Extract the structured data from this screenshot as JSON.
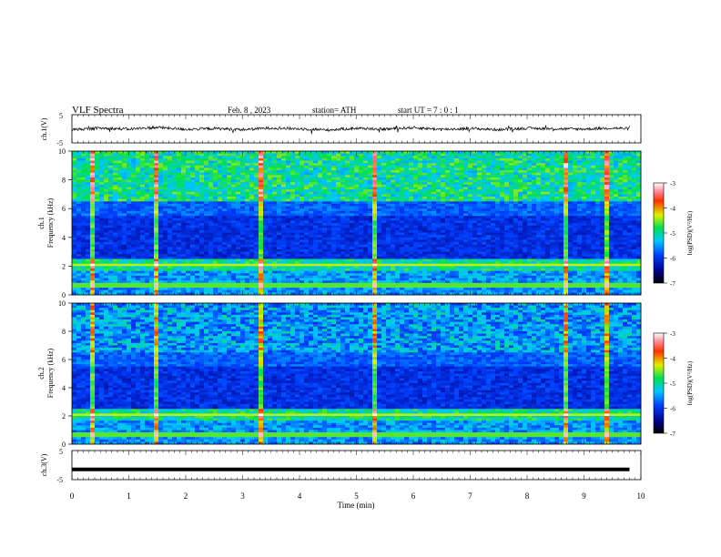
{
  "header": {
    "title": "VLF  Spectra",
    "date": "Feb. 8  , 2023",
    "station": "station= ATH",
    "start": "start  UT  =   7  : 0   : 1"
  },
  "chart_data": [
    {
      "type": "line",
      "name": "ch1-waveform",
      "ylabel": "ch.1(V)",
      "ylim": [
        -5,
        5
      ],
      "yticks": [
        "5",
        "-5"
      ],
      "x": [
        0,
        0.5,
        1,
        1.5,
        2,
        2.5,
        3,
        3.5,
        4,
        4.5,
        5,
        5.5,
        6,
        6.5,
        7,
        7.5,
        8,
        8.5,
        9,
        9.5,
        9.8
      ],
      "y": [
        -0.3,
        0.2,
        -0.1,
        0.5,
        -0.2,
        0.1,
        -0.3,
        0.3,
        0.0,
        -0.4,
        0.2,
        -0.1,
        0.4,
        -0.2,
        0.1,
        -0.3,
        0.2,
        0.0,
        -0.1,
        0.3,
        0.0
      ]
    },
    {
      "type": "heatmap",
      "name": "ch1-spectrogram",
      "ylabel": "ch.1\nFrequency  (kHz)",
      "ylim": [
        0,
        10
      ],
      "yticks": [
        "0",
        "2",
        "4",
        "6",
        "8",
        "10"
      ],
      "colorbar": {
        "label": "log(PSD)(V²/Hz)",
        "range": [
          -7,
          -3
        ],
        "ticks": [
          "-3",
          "-4",
          "-5",
          "-6",
          "-7"
        ]
      },
      "impulse_times_min": [
        0.35,
        1.5,
        3.3,
        5.35,
        8.7,
        9.4
      ]
    },
    {
      "type": "heatmap",
      "name": "ch2-spectrogram",
      "ylabel": "ch.2\nFrequency  (kHz)",
      "ylim": [
        0,
        10
      ],
      "yticks": [
        "0",
        "2",
        "4",
        "6",
        "8",
        "10"
      ],
      "colorbar": {
        "label": "log(PSD)(V²/Hz)",
        "range": [
          -7,
          -3
        ],
        "ticks": [
          "-3",
          "-4",
          "-5",
          "-6",
          "-7"
        ]
      },
      "impulse_times_min": [
        0.35,
        1.5,
        3.3,
        5.35,
        8.7,
        9.4
      ]
    },
    {
      "type": "line",
      "name": "ch3-waveform",
      "ylabel": "ch.3(V)",
      "ylim": [
        -5,
        5
      ],
      "yticks": [
        "5",
        "-5"
      ],
      "x": [
        0,
        9.8
      ],
      "y": [
        -1.5,
        -1.5
      ]
    }
  ],
  "xaxis": {
    "label": "Time  (min)",
    "range": [
      0,
      10
    ],
    "ticks": [
      "0",
      "1",
      "2",
      "3",
      "4",
      "5",
      "6",
      "7",
      "8",
      "9",
      "10"
    ]
  }
}
